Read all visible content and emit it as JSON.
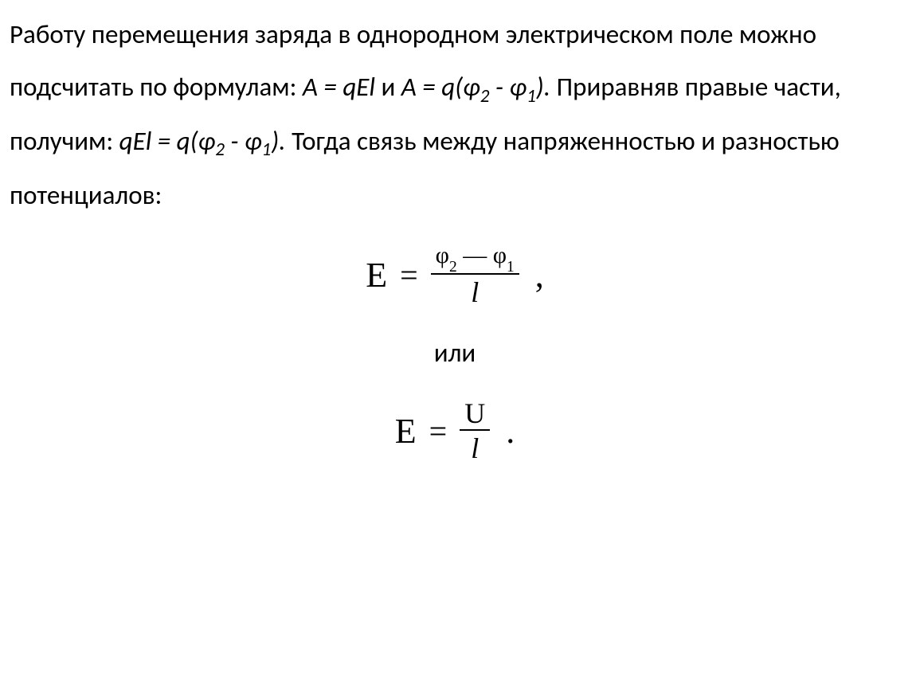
{
  "paragraph": {
    "t1": "Работу перемещения заряда в однородном электрическом поле можно подсчитать по формулам: ",
    "eq1_a": "A = qEl",
    "t2": " и ",
    "eq1_b": "A = q(φ",
    "sub2": "2",
    "t3": " - φ",
    "sub1": "1",
    "t4": ").",
    "t5": " Приравняв правые части, получим: ",
    "eq2": "qEl = q(φ",
    "sub2b": "2",
    "t6": " - φ",
    "sub1b": "1",
    "t7": ").",
    "t8": " Тогда связь между напряженностью и разностью потенциалов:"
  },
  "formula1": {
    "e": "E",
    "equals": "=",
    "num_phi1": "φ",
    "num_sub1": "2",
    "num_minus": " — ",
    "num_phi2": "φ",
    "num_sub2": "1",
    "den": "l",
    "comma": ","
  },
  "ili": "или",
  "formula2": {
    "e": "E",
    "equals": "=",
    "num": "U",
    "den": "l",
    "dot": "."
  },
  "style": {
    "background_color": "#ffffff",
    "text_color": "#000000",
    "body_fontsize": 33,
    "formula_fontsize": 44,
    "frac_num_fontsize": 30,
    "frac_den_fontsize": 36,
    "line_height": 2.0,
    "font_body": "Calibri, Arial, sans-serif",
    "font_formula": "Times New Roman, serif"
  }
}
